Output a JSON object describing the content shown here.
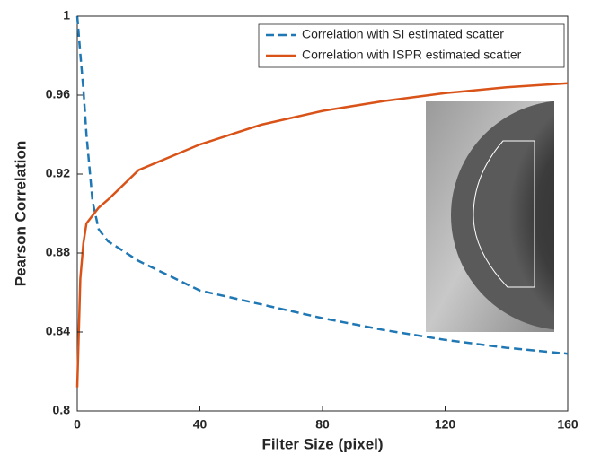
{
  "chart_data": {
    "type": "line",
    "x_label": "Filter Size (pixel)",
    "y_label": "Pearson Correlation",
    "x": [
      0,
      1,
      2,
      3,
      5,
      7,
      10,
      20,
      40,
      60,
      80,
      100,
      120,
      140,
      160
    ],
    "series": [
      {
        "name": "Correlation with SI estimated scatter",
        "color": "#1f77b4",
        "dash": true,
        "values": [
          1.0,
          0.981,
          0.963,
          0.94,
          0.906,
          0.892,
          0.886,
          0.876,
          0.861,
          0.854,
          0.847,
          0.841,
          0.836,
          0.832,
          0.829
        ]
      },
      {
        "name": "Correlation with ISPR estimated scatter",
        "color": "#d95319",
        "dash": false,
        "values": [
          0.812,
          0.867,
          0.885,
          0.895,
          0.899,
          0.903,
          0.907,
          0.922,
          0.935,
          0.945,
          0.952,
          0.957,
          0.961,
          0.964,
          0.966
        ]
      }
    ],
    "xlim": [
      0,
      160
    ],
    "xticks": [
      0,
      40,
      80,
      120,
      160
    ],
    "ylim": [
      0.8,
      1
    ],
    "yticks": [
      0.8,
      0.84,
      0.88,
      0.92,
      0.96,
      1
    ],
    "legend": "top-right"
  }
}
